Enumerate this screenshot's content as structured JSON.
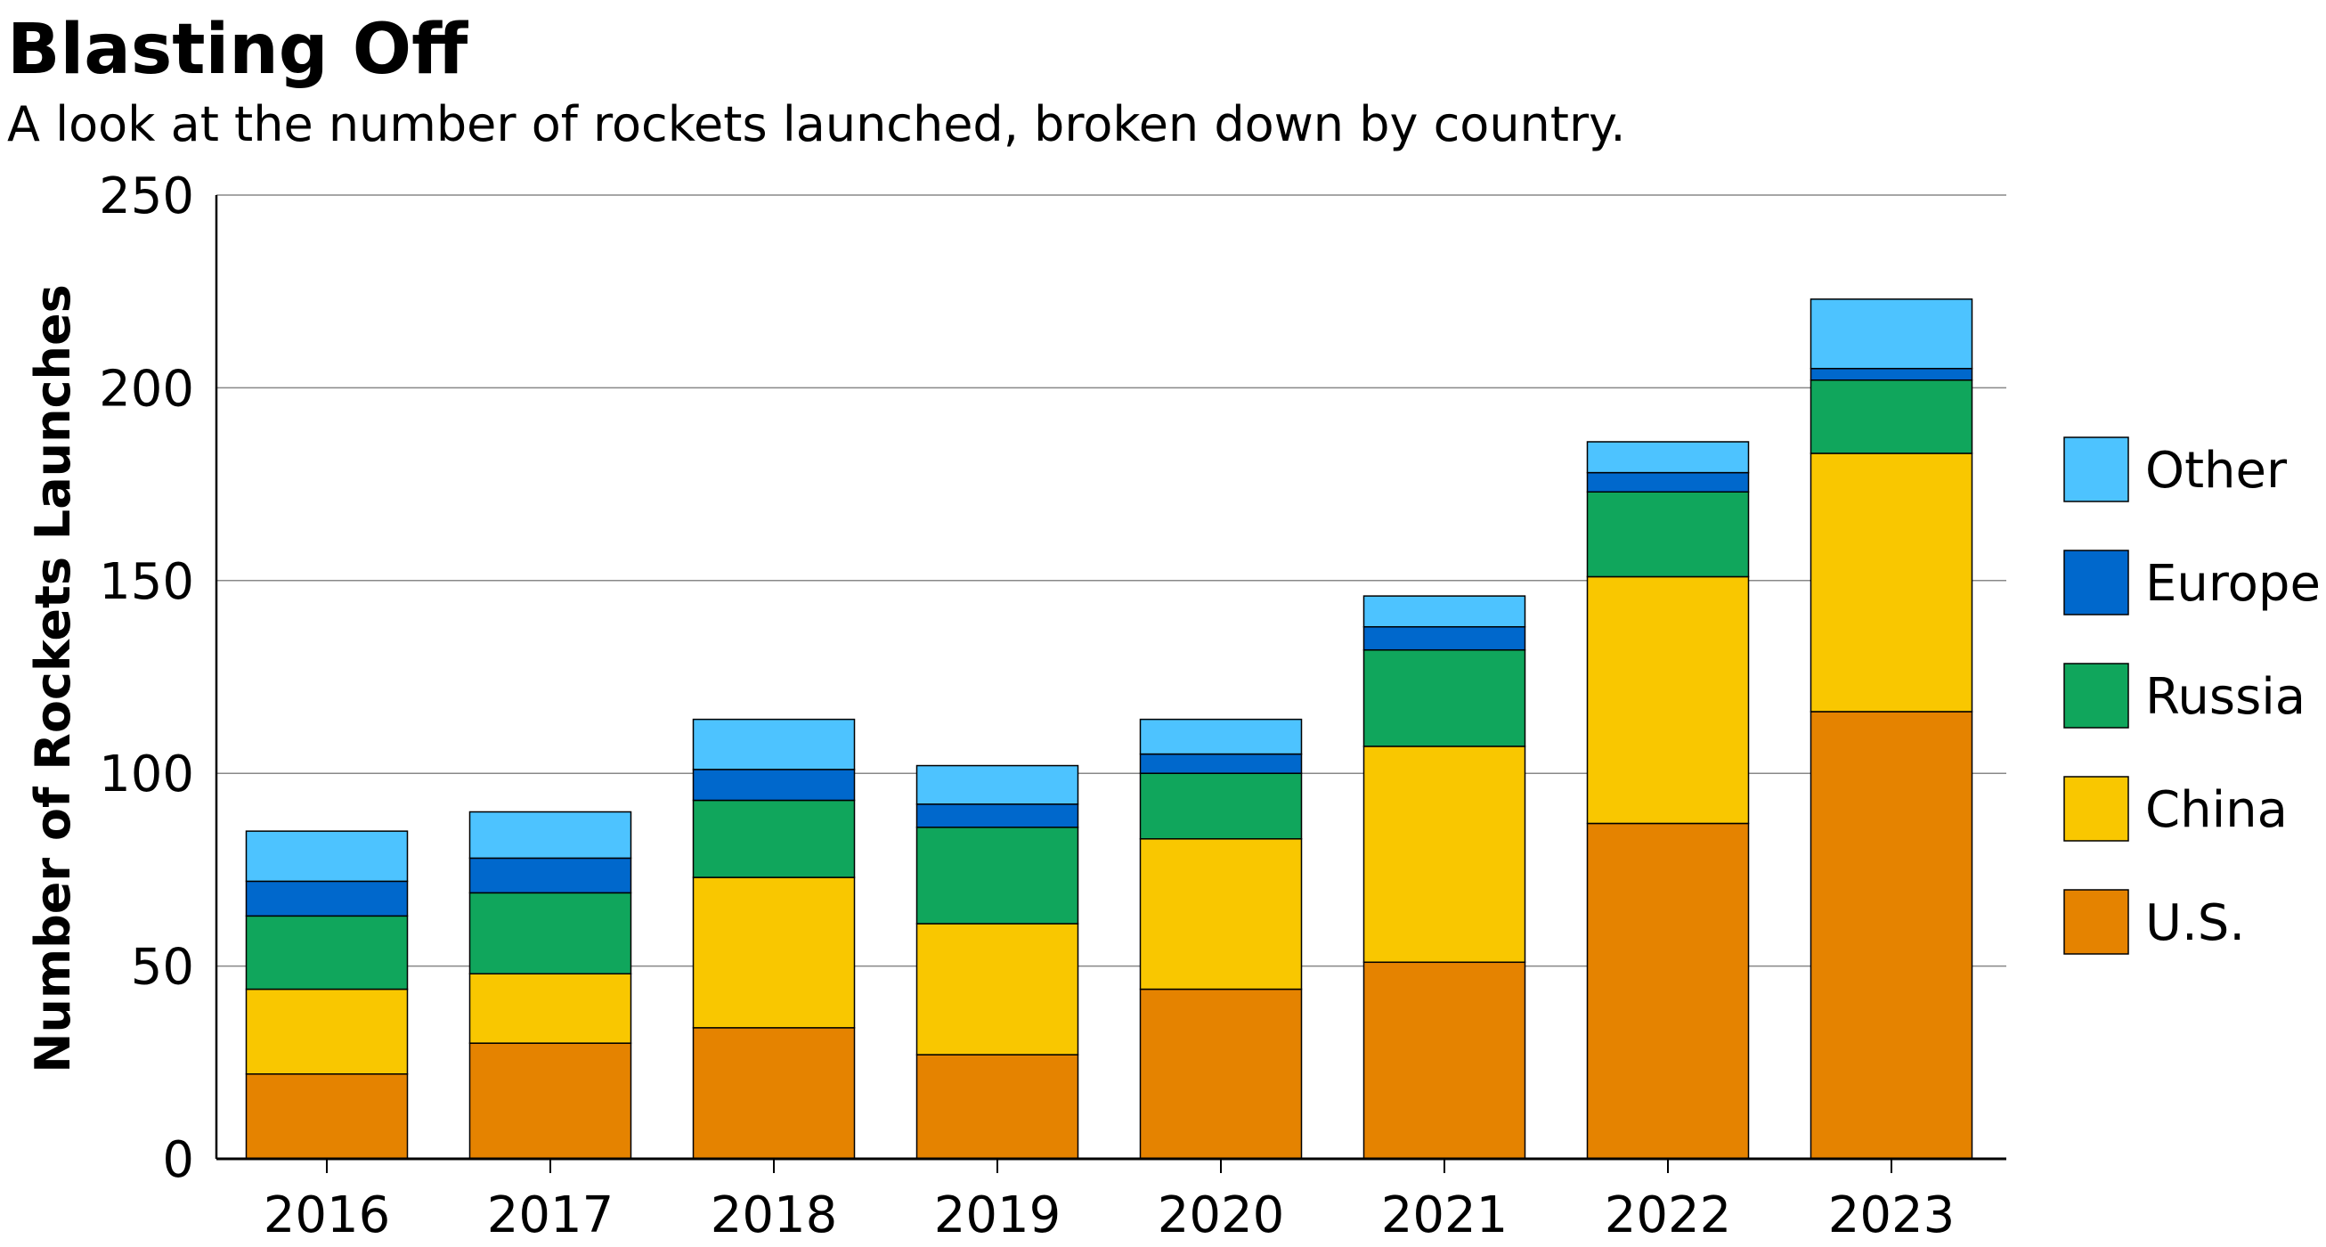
{
  "chart_data": {
    "type": "bar",
    "stacked": true,
    "title": "Blasting Off",
    "subtitle": "A look at the number of rockets launched, broken down by country.",
    "xlabel": "",
    "ylabel": "Number of Rockets Launches",
    "ylim": [
      0,
      250
    ],
    "yticks": [
      0,
      50,
      100,
      150,
      200,
      250
    ],
    "grid": true,
    "legend_position": "right",
    "categories": [
      "2016",
      "2017",
      "2018",
      "2019",
      "2020",
      "2021",
      "2022",
      "2023"
    ],
    "series": [
      {
        "name": "U.S.",
        "color": "#E58300",
        "values": [
          22,
          30,
          34,
          27,
          44,
          51,
          87,
          116
        ]
      },
      {
        "name": "China",
        "color": "#F9C700",
        "values": [
          22,
          18,
          39,
          34,
          39,
          56,
          64,
          67
        ]
      },
      {
        "name": "Russia",
        "color": "#10A65C",
        "values": [
          19,
          21,
          20,
          25,
          17,
          25,
          22,
          19
        ]
      },
      {
        "name": "Europe",
        "color": "#0068CC",
        "values": [
          9,
          9,
          8,
          6,
          5,
          6,
          5,
          3
        ]
      },
      {
        "name": "Other",
        "color": "#4DC3FF",
        "values": [
          13,
          12,
          13,
          10,
          9,
          8,
          8,
          18
        ]
      }
    ]
  }
}
